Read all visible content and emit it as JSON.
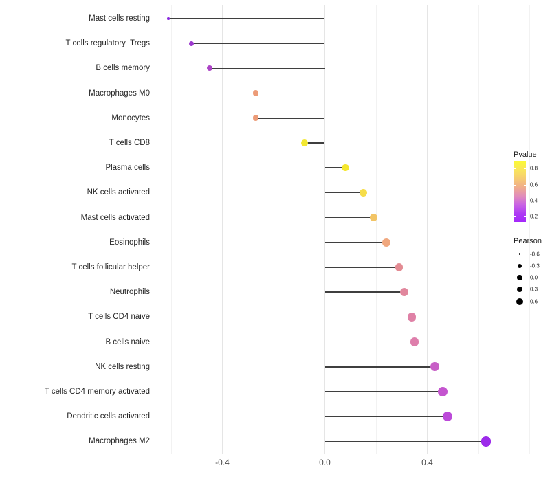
{
  "chart_data": {
    "type": "lollipop",
    "title": "",
    "xlabel": "",
    "ylabel": "",
    "x_tick_labels": [
      "-0.4",
      "0.0",
      "0.4"
    ],
    "x_tick_values": [
      -0.4,
      0.0,
      0.4
    ],
    "x_major_gridlines": [
      -0.4,
      0.0,
      0.4
    ],
    "x_minor_gridlines": [
      -0.6,
      -0.2,
      0.2,
      0.6,
      0.8
    ],
    "xlim": [
      -0.66,
      0.86
    ],
    "grid": true,
    "size_encodes": "Pearson",
    "color_encodes": "Pvalue",
    "points": [
      {
        "label": "Mast cells resting",
        "pearson": -0.61,
        "color": "#8b2bdf",
        "radius": 1.8
      },
      {
        "label": "T cells regulatory  Tregs",
        "pearson": -0.52,
        "color": "#9d39cf",
        "radius": 3.6
      },
      {
        "label": "B cells memory",
        "pearson": -0.45,
        "color": "#ac43c6",
        "radius": 4.0
      },
      {
        "label": "Macrophages M0",
        "pearson": -0.27,
        "color": "#ec9b77",
        "radius": 4.4
      },
      {
        "label": "Monocytes",
        "pearson": -0.27,
        "color": "#ec9b77",
        "radius": 4.4
      },
      {
        "label": "T cells CD8",
        "pearson": -0.08,
        "color": "#f3e832",
        "radius": 5.2
      },
      {
        "label": "Plasma cells",
        "pearson": 0.08,
        "color": "#f5e72e",
        "radius": 5.3
      },
      {
        "label": "NK cells activated",
        "pearson": 0.15,
        "color": "#f6dd49",
        "radius": 5.5
      },
      {
        "label": "Mast cells activated",
        "pearson": 0.19,
        "color": "#f2c465",
        "radius": 5.7
      },
      {
        "label": "Eosinophils",
        "pearson": 0.24,
        "color": "#f0a77e",
        "radius": 6.0
      },
      {
        "label": "T cells follicular helper",
        "pearson": 0.29,
        "color": "#e38b93",
        "radius": 5.9
      },
      {
        "label": "Neutrophils",
        "pearson": 0.31,
        "color": "#e1879d",
        "radius": 6.1
      },
      {
        "label": "T cells CD4 naive",
        "pearson": 0.34,
        "color": "#df81a6",
        "radius": 6.3
      },
      {
        "label": "B cells naive",
        "pearson": 0.35,
        "color": "#de7eab",
        "radius": 6.3
      },
      {
        "label": "NK cells resting",
        "pearson": 0.43,
        "color": "#c75fc6",
        "radius": 6.6
      },
      {
        "label": "T cells CD4 memory activated",
        "pearson": 0.46,
        "color": "#c455cf",
        "radius": 6.9
      },
      {
        "label": "Dendritic cells activated",
        "pearson": 0.48,
        "color": "#bc4ad9",
        "radius": 7.0
      },
      {
        "label": "Macrophages M2",
        "pearson": 0.63,
        "color": "#9c2bea",
        "radius": 7.3
      }
    ]
  },
  "legend": {
    "pvalue": {
      "title": "Pvalue",
      "tick_labels": [
        "0.8",
        "0.6",
        "0.4",
        "0.2"
      ],
      "gradient_top_to_bottom": [
        "#fbf837",
        "#f9e55c",
        "#f6cb72",
        "#f0ac8c",
        "#e18cbb",
        "#c964e3",
        "#ae3bf4",
        "#a428fa"
      ]
    },
    "pearson": {
      "title": "Pearson",
      "entries": [
        {
          "label": "-0.6",
          "radius": 1.3
        },
        {
          "label": "-0.3",
          "radius": 3.0
        },
        {
          "label": "0.0",
          "radius": 3.7
        },
        {
          "label": "0.3",
          "radius": 4.3
        },
        {
          "label": "0.6",
          "radius": 5.0
        }
      ],
      "dot_color": "#000000"
    }
  },
  "colors": {
    "background": "#ffffff",
    "stick": "#3f3f3f",
    "grid_major": "#e5e5e5",
    "grid_minor": "#f2f2f2",
    "axis_text": "#4d4d4d",
    "label_text": "#262626"
  }
}
